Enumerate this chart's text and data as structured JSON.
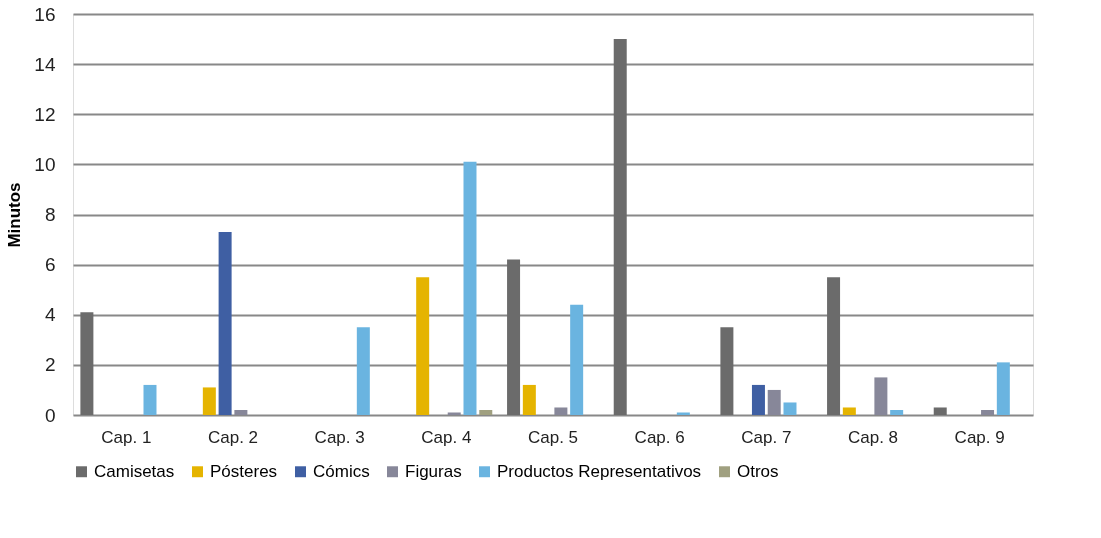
{
  "chart_data": {
    "type": "bar",
    "ylabel": "Minutos",
    "categories": [
      "Cap. 1",
      "Cap. 2",
      "Cap. 3",
      "Cap. 4",
      "Cap. 5",
      "Cap. 6",
      "Cap. 7",
      "Cap. 8",
      "Cap. 9"
    ],
    "series": [
      {
        "name": "Camisetas",
        "color": "#6b6b6b",
        "values": [
          4.1,
          0,
          0,
          0,
          6.2,
          15,
          3.5,
          5.5,
          0.3
        ]
      },
      {
        "name": "Pósteres",
        "color": "#e5b400",
        "values": [
          0,
          1.1,
          0,
          5.5,
          1.2,
          0,
          0,
          0.3,
          0
        ]
      },
      {
        "name": "Cómics",
        "color": "#3f5fa3",
        "values": [
          0,
          7.3,
          0,
          0,
          0,
          0,
          1.2,
          0,
          0
        ]
      },
      {
        "name": "Figuras",
        "color": "#878799",
        "values": [
          0,
          0.2,
          0,
          0.1,
          0.3,
          0,
          1.0,
          1.5,
          0.2
        ]
      },
      {
        "name": "Productos Representativos",
        "color": "#6ab4e0",
        "values": [
          1.2,
          0,
          3.5,
          10.1,
          4.4,
          0.1,
          0.5,
          0.2,
          2.1
        ]
      },
      {
        "name": "Otros",
        "color": "#a0a080",
        "values": [
          0,
          0,
          0,
          0.2,
          0,
          0,
          0,
          0,
          0
        ]
      }
    ],
    "ylim": [
      0,
      16
    ],
    "yticks": [
      0,
      2,
      4,
      6,
      8,
      10,
      12,
      14,
      16
    ],
    "grid": "y",
    "legend": "bottom"
  }
}
